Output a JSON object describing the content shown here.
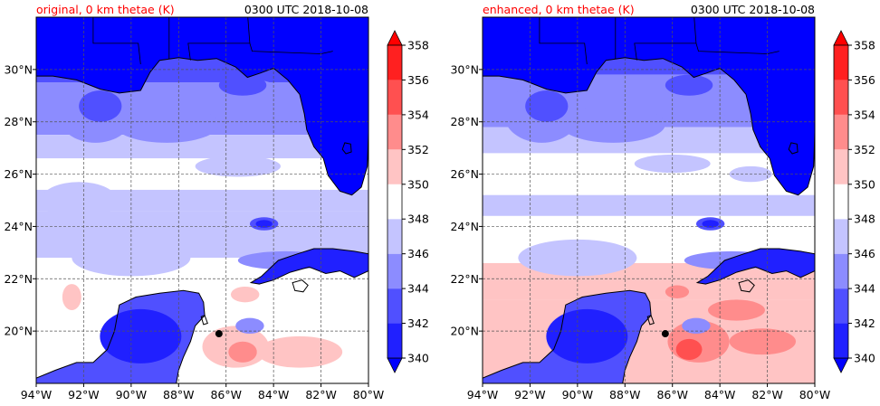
{
  "panels": [
    {
      "title_left": "original, 0 km thetae (K)",
      "title_right": "0300 UTC 2018-10-08",
      "variant": "original"
    },
    {
      "title_left": "enhanced, 0 km thetae (K)",
      "title_right": "0300 UTC 2018-10-08",
      "variant": "enhanced"
    }
  ],
  "chart_data": {
    "type": "heatmap",
    "map": "Gulf of Mexico, Florida, Yucatan and Cuba",
    "lon_range": [
      -94,
      -80
    ],
    "lat_range": [
      18,
      32
    ],
    "x_tick_labels": [
      "94°W",
      "92°W",
      "90°W",
      "88°W",
      "86°W",
      "84°W",
      "82°W",
      "80°W"
    ],
    "x_tick_values": [
      -94,
      -92,
      -90,
      -88,
      -86,
      -84,
      -82,
      -80
    ],
    "y_tick_labels": [
      "20°N",
      "22°N",
      "24°N",
      "26°N",
      "28°N",
      "30°N"
    ],
    "y_tick_values": [
      20,
      22,
      24,
      26,
      28,
      30
    ],
    "grid": true,
    "colorbar": {
      "levels": [
        340,
        342,
        344,
        346,
        348,
        350,
        352,
        354,
        356,
        358
      ],
      "tick_labels": [
        "340",
        "342",
        "344",
        "346",
        "348",
        "350",
        "352",
        "354",
        "356",
        "358"
      ],
      "extend": "both",
      "colors": [
        "#0000ff",
        "#2020ff",
        "#5050ff",
        "#8c8cff",
        "#c4c4ff",
        "#ffffff",
        "#ffc4c4",
        "#ff8c8c",
        "#ff5050",
        "#ff2020",
        "#ff0000"
      ]
    },
    "marker": {
      "lon": -86.3,
      "lat": 19.9,
      "color": "#000000"
    },
    "title_color": "#ff0000"
  }
}
